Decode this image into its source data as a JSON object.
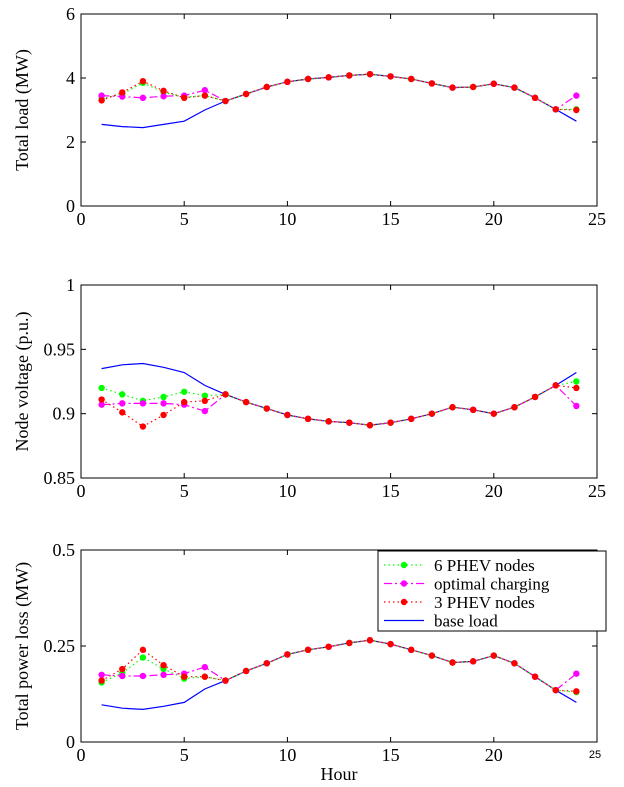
{
  "x_axis_label": "Hour",
  "chart_data": [
    {
      "type": "line",
      "ylabel": "Total load (MW)",
      "xlim": [
        0,
        25
      ],
      "ylim": [
        0,
        6
      ],
      "xticks": [
        0,
        5,
        10,
        15,
        20,
        25
      ],
      "yticks": [
        0,
        2,
        4,
        6
      ],
      "x": [
        1,
        2,
        3,
        4,
        5,
        6,
        7,
        8,
        9,
        10,
        11,
        12,
        13,
        14,
        15,
        16,
        17,
        18,
        19,
        20,
        21,
        22,
        23,
        24
      ],
      "series": [
        {
          "name": "6 PHEV nodes",
          "color": "#00ff00",
          "style": "dotted",
          "marker": "dot",
          "values": [
            3.35,
            3.5,
            3.85,
            3.55,
            3.4,
            3.45,
            3.28,
            3.5,
            3.72,
            3.88,
            3.97,
            4.02,
            4.08,
            4.12,
            4.05,
            3.97,
            3.83,
            3.7,
            3.72,
            3.82,
            3.7,
            3.38,
            3.02,
            3.02
          ]
        },
        {
          "name": "optimal charging",
          "color": "#ff00ff",
          "style": "dashdot",
          "marker": "dot",
          "values": [
            3.45,
            3.42,
            3.38,
            3.43,
            3.45,
            3.62,
            3.28,
            3.5,
            3.72,
            3.88,
            3.97,
            4.02,
            4.08,
            4.12,
            4.05,
            3.97,
            3.83,
            3.7,
            3.72,
            3.82,
            3.7,
            3.38,
            3.02,
            3.45
          ]
        },
        {
          "name": "3 PHEV nodes",
          "color": "#ff0000",
          "style": "dotted",
          "marker": "dot",
          "values": [
            3.3,
            3.55,
            3.9,
            3.6,
            3.38,
            3.45,
            3.28,
            3.5,
            3.72,
            3.88,
            3.97,
            4.02,
            4.08,
            4.12,
            4.05,
            3.97,
            3.83,
            3.7,
            3.72,
            3.82,
            3.7,
            3.38,
            3.02,
            3.0
          ]
        },
        {
          "name": "base load",
          "color": "#0000ff",
          "style": "solid",
          "marker": "none",
          "values": [
            2.55,
            2.48,
            2.45,
            2.55,
            2.65,
            3.0,
            3.28,
            3.5,
            3.72,
            3.88,
            3.97,
            4.02,
            4.08,
            4.12,
            4.05,
            3.97,
            3.83,
            3.7,
            3.72,
            3.82,
            3.7,
            3.38,
            3.02,
            2.65
          ]
        }
      ],
      "legend": false
    },
    {
      "type": "line",
      "ylabel": "Node voltage (p.u.)",
      "xlim": [
        0,
        25
      ],
      "ylim": [
        0.85,
        1
      ],
      "xticks": [
        0,
        5,
        10,
        15,
        20,
        25
      ],
      "yticks": [
        0.85,
        0.9,
        0.95,
        1
      ],
      "ytick_labels": [
        "0.85",
        "0.9",
        "0.95",
        "1"
      ],
      "x": [
        1,
        2,
        3,
        4,
        5,
        6,
        7,
        8,
        9,
        10,
        11,
        12,
        13,
        14,
        15,
        16,
        17,
        18,
        19,
        20,
        21,
        22,
        23,
        24
      ],
      "series": [
        {
          "name": "6 PHEV nodes",
          "color": "#00ff00",
          "style": "dotted",
          "marker": "dot",
          "values": [
            0.92,
            0.915,
            0.91,
            0.913,
            0.917,
            0.914,
            0.915,
            0.909,
            0.904,
            0.899,
            0.896,
            0.894,
            0.893,
            0.891,
            0.893,
            0.896,
            0.9,
            0.905,
            0.903,
            0.9,
            0.905,
            0.913,
            0.922,
            0.925
          ]
        },
        {
          "name": "optimal charging",
          "color": "#ff00ff",
          "style": "dashdot",
          "marker": "dot",
          "values": [
            0.907,
            0.908,
            0.908,
            0.908,
            0.907,
            0.902,
            0.915,
            0.909,
            0.904,
            0.899,
            0.896,
            0.894,
            0.893,
            0.891,
            0.893,
            0.896,
            0.9,
            0.905,
            0.903,
            0.9,
            0.905,
            0.913,
            0.922,
            0.906
          ]
        },
        {
          "name": "3 PHEV nodes",
          "color": "#ff0000",
          "style": "dotted",
          "marker": "dot",
          "values": [
            0.911,
            0.901,
            0.89,
            0.899,
            0.909,
            0.91,
            0.915,
            0.909,
            0.904,
            0.899,
            0.896,
            0.894,
            0.893,
            0.891,
            0.893,
            0.896,
            0.9,
            0.905,
            0.903,
            0.9,
            0.905,
            0.913,
            0.922,
            0.92
          ]
        },
        {
          "name": "base load",
          "color": "#0000ff",
          "style": "solid",
          "marker": "none",
          "values": [
            0.935,
            0.938,
            0.939,
            0.936,
            0.932,
            0.922,
            0.915,
            0.909,
            0.904,
            0.899,
            0.896,
            0.894,
            0.893,
            0.891,
            0.893,
            0.896,
            0.9,
            0.905,
            0.903,
            0.9,
            0.905,
            0.913,
            0.922,
            0.932
          ]
        }
      ],
      "legend": false
    },
    {
      "type": "line",
      "ylabel": "Total power loss (MW)",
      "xlabel": "Hour",
      "xlim": [
        0,
        25
      ],
      "ylim": [
        0,
        0.5
      ],
      "xticks": [
        0,
        5,
        10,
        15,
        20,
        25
      ],
      "yticks": [
        0,
        0.25,
        0.5
      ],
      "ytick_labels": [
        "0",
        "0.25",
        "0.5"
      ],
      "x": [
        1,
        2,
        3,
        4,
        5,
        6,
        7,
        8,
        9,
        10,
        11,
        12,
        13,
        14,
        15,
        16,
        17,
        18,
        19,
        20,
        21,
        22,
        23,
        24
      ],
      "series": [
        {
          "name": "6 PHEV nodes",
          "color": "#00ff00",
          "style": "dotted",
          "marker": "dot",
          "values": [
            0.155,
            0.18,
            0.22,
            0.19,
            0.165,
            0.17,
            0.16,
            0.185,
            0.205,
            0.228,
            0.24,
            0.248,
            0.258,
            0.265,
            0.255,
            0.24,
            0.225,
            0.207,
            0.21,
            0.225,
            0.205,
            0.17,
            0.135,
            0.13
          ]
        },
        {
          "name": "optimal charging",
          "color": "#ff00ff",
          "style": "dashdot",
          "marker": "dot",
          "values": [
            0.175,
            0.172,
            0.172,
            0.175,
            0.178,
            0.195,
            0.16,
            0.185,
            0.205,
            0.228,
            0.24,
            0.248,
            0.258,
            0.265,
            0.255,
            0.24,
            0.225,
            0.207,
            0.21,
            0.225,
            0.205,
            0.17,
            0.135,
            0.178
          ]
        },
        {
          "name": "3 PHEV nodes",
          "color": "#ff0000",
          "style": "dotted",
          "marker": "dot",
          "values": [
            0.16,
            0.19,
            0.24,
            0.2,
            0.17,
            0.17,
            0.16,
            0.185,
            0.205,
            0.228,
            0.24,
            0.248,
            0.258,
            0.265,
            0.255,
            0.24,
            0.225,
            0.207,
            0.21,
            0.225,
            0.205,
            0.17,
            0.135,
            0.132
          ]
        },
        {
          "name": "base load",
          "color": "#0000ff",
          "style": "solid",
          "marker": "none",
          "values": [
            0.097,
            0.088,
            0.085,
            0.093,
            0.103,
            0.138,
            0.16,
            0.185,
            0.205,
            0.228,
            0.24,
            0.248,
            0.258,
            0.265,
            0.255,
            0.24,
            0.225,
            0.207,
            0.21,
            0.225,
            0.205,
            0.17,
            0.135,
            0.103
          ]
        }
      ],
      "legend": true,
      "legend_position": "top-right"
    }
  ]
}
